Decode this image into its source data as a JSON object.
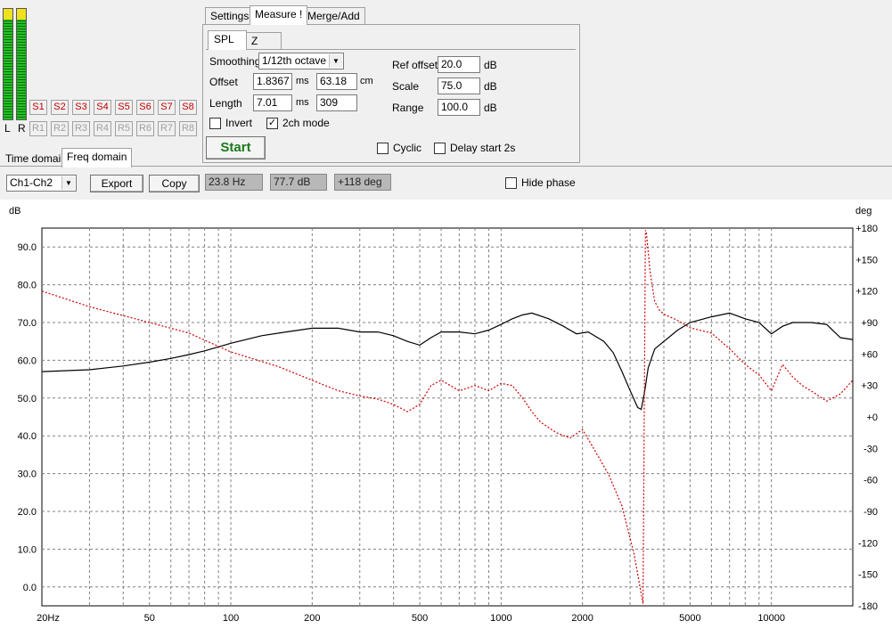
{
  "meters": {
    "left_label": "L",
    "right_label": "R",
    "left_level": 0.92,
    "right_level": 0.92
  },
  "slots": {
    "s": [
      "S1",
      "S2",
      "S3",
      "S4",
      "S5",
      "S6",
      "S7",
      "S8"
    ],
    "r": [
      "R1",
      "R2",
      "R3",
      "R4",
      "R5",
      "R6",
      "R7",
      "R8"
    ]
  },
  "domain_tabs": {
    "time": "Time domain",
    "freq": "Freq domain"
  },
  "main_tabs": {
    "settings": "Settings",
    "measure": "Measure !",
    "merge": "Merge/Add"
  },
  "sub_tabs": {
    "spl": "SPL",
    "z": "Z"
  },
  "measure": {
    "smoothing_label": "Smoothing",
    "smoothing_value": "1/12th octave",
    "offset_label": "Offset",
    "offset_ms": "1.8367",
    "offset_ms_unit": "ms",
    "offset_cm": "63.18",
    "offset_cm_unit": "cm",
    "length_label": "Length",
    "length_ms": "7.01",
    "length_ms_unit": "ms",
    "length_samples": "309",
    "invert_label": "Invert",
    "invert_checked": false,
    "twoch_label": "2ch mode",
    "twoch_checked": true,
    "ref_offset_label": "Ref offset",
    "ref_offset_value": "20.0",
    "ref_offset_unit": "dB",
    "scale_label": "Scale",
    "scale_value": "75.0",
    "scale_unit": "dB",
    "range_label": "Range",
    "range_value": "100.0",
    "range_unit": "dB",
    "start_label": "Start",
    "cyclic_label": "Cyclic",
    "cyclic_checked": false,
    "delay_label": "Delay start 2s",
    "delay_checked": false
  },
  "toolbar": {
    "channel_value": "Ch1-Ch2",
    "export_label": "Export",
    "copy_label": "Copy",
    "freq_readout": "23.8 Hz",
    "db_readout": "77.7 dB",
    "deg_readout": "+118 deg",
    "hide_phase_label": "Hide phase",
    "hide_phase_checked": false
  },
  "chart_data": {
    "type": "line",
    "xscale": "log",
    "xlim": [
      20,
      20000
    ],
    "ylim": [
      -5,
      95
    ],
    "y2lim": [
      -180,
      180
    ],
    "ylabel": "dB",
    "y2label": "deg",
    "grid": true,
    "x_ticks": [
      20,
      50,
      100,
      200,
      500,
      1000,
      2000,
      5000,
      10000
    ],
    "x_tick_labels": [
      "20Hz",
      "50",
      "100",
      "200",
      "500",
      "1000",
      "2000",
      "5000",
      "10000"
    ],
    "y_ticks": [
      0,
      10,
      20,
      30,
      40,
      50,
      60,
      70,
      80,
      90
    ],
    "y_tick_labels": [
      "0.0",
      "10.0",
      "20.0",
      "30.0",
      "40.0",
      "50.0",
      "60.0",
      "70.0",
      "80.0",
      "90.0"
    ],
    "y2_ticks": [
      -180,
      -150,
      -120,
      -90,
      -60,
      -30,
      0,
      30,
      60,
      90,
      120,
      150,
      180
    ],
    "y2_tick_labels": [
      "-180",
      "-150",
      "-120",
      "-90",
      "-60",
      "-30",
      "+0",
      "+30",
      "+60",
      "+90",
      "+120",
      "+150",
      "+180"
    ],
    "series": [
      {
        "axis": "left",
        "color": "#000000",
        "style": "solid",
        "x": [
          20,
          30,
          40,
          50,
          60,
          70,
          80,
          100,
          130,
          160,
          200,
          250,
          300,
          350,
          400,
          450,
          500,
          550,
          600,
          700,
          800,
          900,
          1000,
          1100,
          1200,
          1300,
          1500,
          1700,
          1900,
          2100,
          2400,
          2600,
          2800,
          3000,
          3200,
          3300,
          3400,
          3500,
          3700,
          4000,
          4500,
          5000,
          6000,
          7000,
          8000,
          9000,
          10000,
          11000,
          12000,
          14000,
          16000,
          18000,
          20000
        ],
        "values": [
          57,
          57.5,
          58.5,
          59.5,
          60.5,
          61.5,
          62.5,
          64.5,
          66.5,
          67.5,
          68.5,
          68.5,
          67.5,
          67.5,
          66.5,
          65,
          64,
          66,
          67.5,
          67.5,
          67,
          68,
          69.5,
          71,
          72,
          72.5,
          71,
          69,
          67,
          67.5,
          65,
          62,
          57,
          52,
          47.5,
          47,
          52,
          58,
          63,
          65,
          68,
          70,
          71.5,
          72.5,
          71,
          70,
          67,
          69,
          70,
          70,
          69.5,
          66,
          65.5
        ]
      },
      {
        "axis": "right",
        "color": "#cc0000",
        "style": "dotted",
        "x": [
          20,
          30,
          50,
          70,
          100,
          150,
          200,
          250,
          300,
          350,
          400,
          450,
          500,
          550,
          600,
          700,
          800,
          900,
          1000,
          1100,
          1200,
          1300,
          1400,
          1600,
          1800,
          2000,
          2200,
          2500,
          2800,
          3100,
          3350,
          3420,
          3450,
          3550,
          3700,
          3850,
          4000,
          4500,
          5000,
          6000,
          7000,
          8000,
          9000,
          10000,
          11000,
          12000,
          13000,
          14000,
          16000,
          18000,
          20000
        ],
        "values": [
          120,
          105,
          90,
          80,
          62,
          48,
          35,
          25,
          20,
          17,
          12,
          5,
          12,
          30,
          35,
          25,
          30,
          25,
          32,
          30,
          18,
          5,
          -5,
          -15,
          -20,
          -12,
          -30,
          -55,
          -85,
          -130,
          -178,
          178,
          175,
          140,
          110,
          102,
          98,
          92,
          85,
          80,
          65,
          50,
          40,
          25,
          50,
          38,
          30,
          25,
          15,
          22,
          35
        ]
      }
    ]
  }
}
